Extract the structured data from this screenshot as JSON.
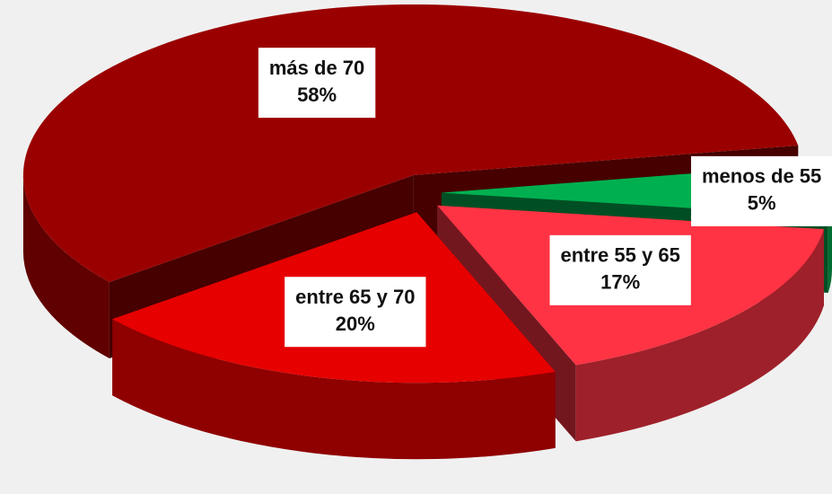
{
  "chart_data": {
    "type": "pie",
    "categories": [
      "menos de 55",
      "entre 55 y 65",
      "entre 65 y 70",
      "más de 70"
    ],
    "values": [
      5,
      17,
      20,
      58
    ],
    "value_labels": [
      "5%",
      "17%",
      "20%",
      "58%"
    ],
    "colors": [
      "#00b050",
      "#ff3344",
      "#e60000",
      "#9b0000"
    ]
  }
}
